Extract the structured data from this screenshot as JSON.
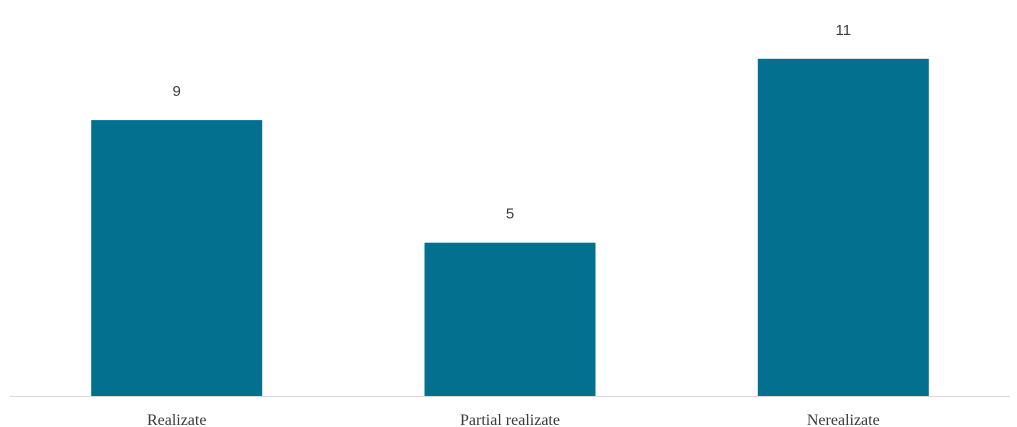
{
  "chart_data": {
    "type": "bar",
    "categories": [
      "Realizate",
      "Partial realizate",
      "Nerealizate"
    ],
    "values": [
      9,
      5,
      11
    ],
    "title": "",
    "xlabel": "",
    "ylabel": "",
    "ylim": [
      0,
      12.3
    ],
    "grid": false,
    "legend": "none",
    "bar_color": "#02708e",
    "axis_color": "#d9d9d9",
    "text_color": "#3a3a3a"
  }
}
